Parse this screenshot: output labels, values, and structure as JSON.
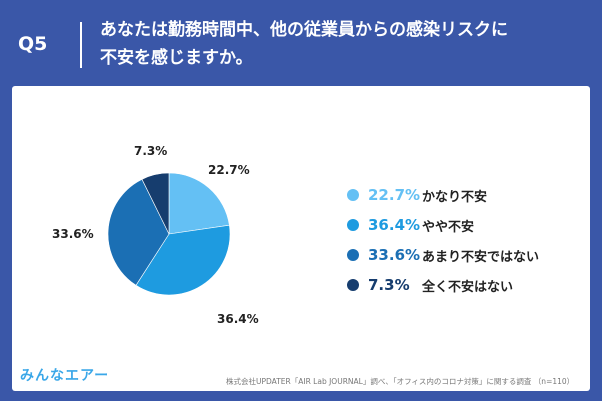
{
  "header": {
    "question_label": "Q5",
    "question_line1": "あなたは勤務時間中、他の従業員からの感染リスクに",
    "question_line2": "不安を感じますか。"
  },
  "chart_data": {
    "type": "pie",
    "slices": [
      {
        "label": "かなり不安",
        "value": 22.7,
        "value_text": "22.7%",
        "color": "#64c0f4"
      },
      {
        "label": "やや不安",
        "value": 36.4,
        "value_text": "36.4%",
        "color": "#1e9be0"
      },
      {
        "label": "あまり不安ではない",
        "value": 33.6,
        "value_text": "33.6%",
        "color": "#1b6fb4"
      },
      {
        "label": "全く不安はない",
        "value": 7.3,
        "value_text": "7.3%",
        "color": "#163d6e"
      }
    ]
  },
  "footer": {
    "logo": "みんなエアー",
    "source": "株式会社UPDATER「AIR Lab JOURNAL」調べ、「オフィス内のコロナ対策」に関する調査 （n=110）"
  }
}
